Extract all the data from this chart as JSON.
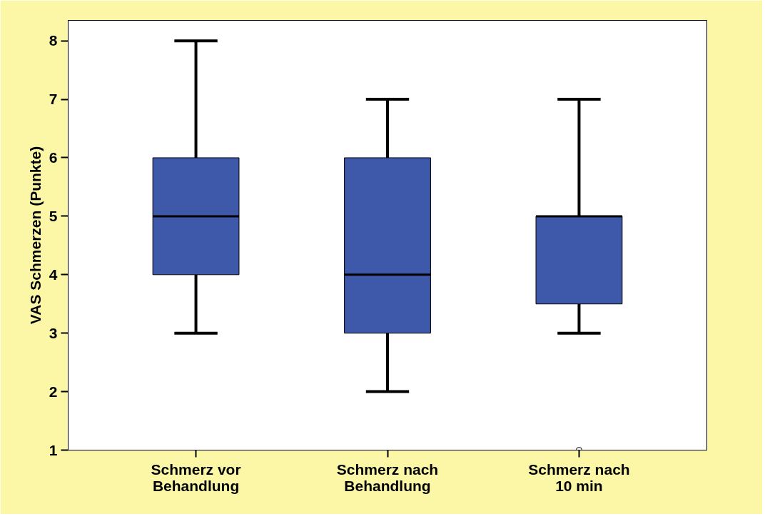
{
  "chart_data": {
    "type": "box",
    "ylabel": "VAS Schmerzen (Punkte)",
    "categories": [
      "Schmerz vor\nBehandlung",
      "Schmerz nach\nBehandlung",
      "Schmerz nach\n10 min"
    ],
    "color": "#3f59aa",
    "boxes": [
      {
        "low": 3,
        "q1": 4,
        "median": 5,
        "q3": 6,
        "high": 8
      },
      {
        "low": 2,
        "q1": 3,
        "median": 4,
        "q3": 6,
        "high": 7
      },
      {
        "low": 3,
        "q1": 3.5,
        "median": 5,
        "q3": 5,
        "high": 7,
        "outliers": [
          1
        ]
      }
    ],
    "ylim": [
      1,
      8.35
    ],
    "yticks": [
      1,
      2,
      3,
      4,
      5,
      6,
      7,
      8
    ],
    "grid": false
  }
}
